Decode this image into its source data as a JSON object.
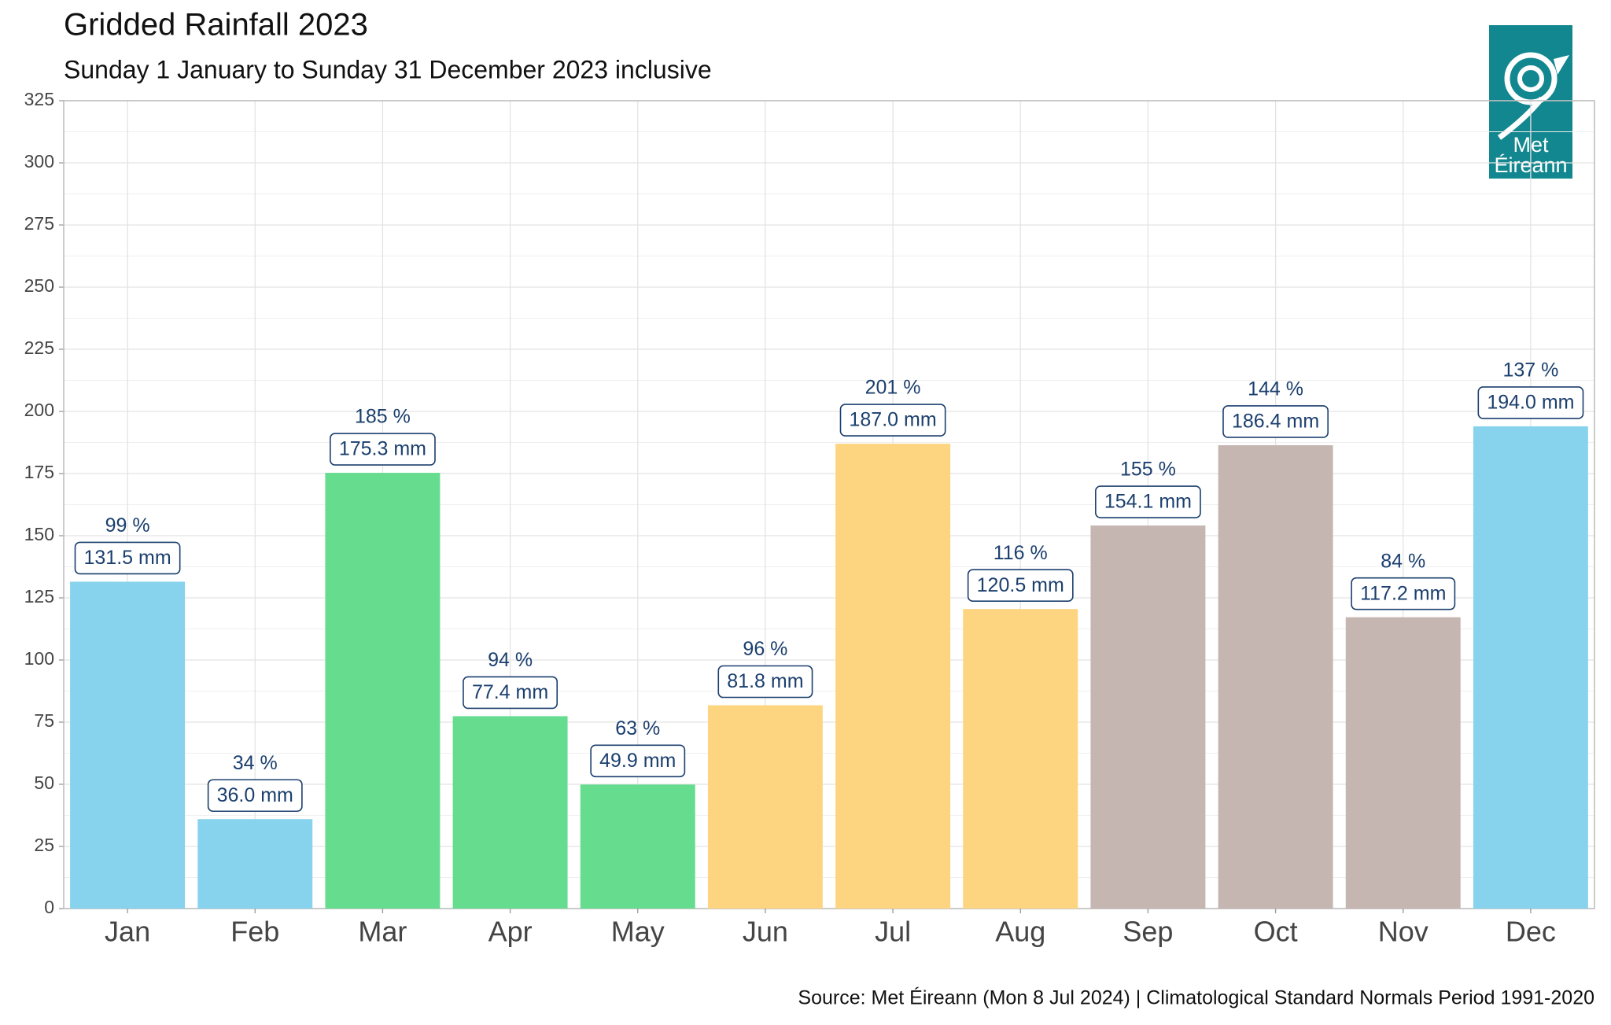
{
  "chart_data": {
    "type": "bar",
    "title": "Gridded Rainfall 2023",
    "subtitle": "Sunday 1 January to Sunday 31 December 2023 inclusive",
    "source": "Source: Met Éireann (Mon 8 Jul 2024) | Climatological Standard Normals Period 1991-2020",
    "logo": [
      "Met",
      "Éireann"
    ],
    "categories": [
      "Jan",
      "Feb",
      "Mar",
      "Apr",
      "May",
      "Jun",
      "Jul",
      "Aug",
      "Sep",
      "Oct",
      "Nov",
      "Dec"
    ],
    "values": [
      131.5,
      36.0,
      175.3,
      77.4,
      49.9,
      81.8,
      187.0,
      120.5,
      154.1,
      186.4,
      117.2,
      194.0
    ],
    "value_labels": [
      "131.5 mm",
      "36.0 mm",
      "175.3 mm",
      "77.4 mm",
      "49.9 mm",
      "81.8 mm",
      "187.0 mm",
      "120.5 mm",
      "154.1 mm",
      "186.4 mm",
      "117.2 mm",
      "194.0 mm"
    ],
    "colors": [
      "#87d3ee",
      "#87d3ee",
      "#66dc8f",
      "#66dc8f",
      "#66dc8f",
      "#fdd581",
      "#fdd581",
      "#fdd581",
      "#c5b6b1",
      "#c5b6b1",
      "#c5b6b1",
      "#87d3ee"
    ],
    "percent_of_normal": {
      "values": [
        99,
        34,
        185,
        94,
        63,
        96,
        201,
        116,
        155,
        144,
        84,
        137
      ],
      "value_labels": [
        "99 %",
        "34 %",
        "185 %",
        "94 %",
        "63 %",
        "96 %",
        "201 %",
        "116 %",
        "155 %",
        "144 %",
        "84 %",
        "137 %"
      ]
    },
    "ylim": [
      0,
      325
    ],
    "yticks": [
      0,
      25,
      50,
      75,
      100,
      125,
      150,
      175,
      200,
      225,
      250,
      275,
      300,
      325
    ],
    "grid": true
  }
}
